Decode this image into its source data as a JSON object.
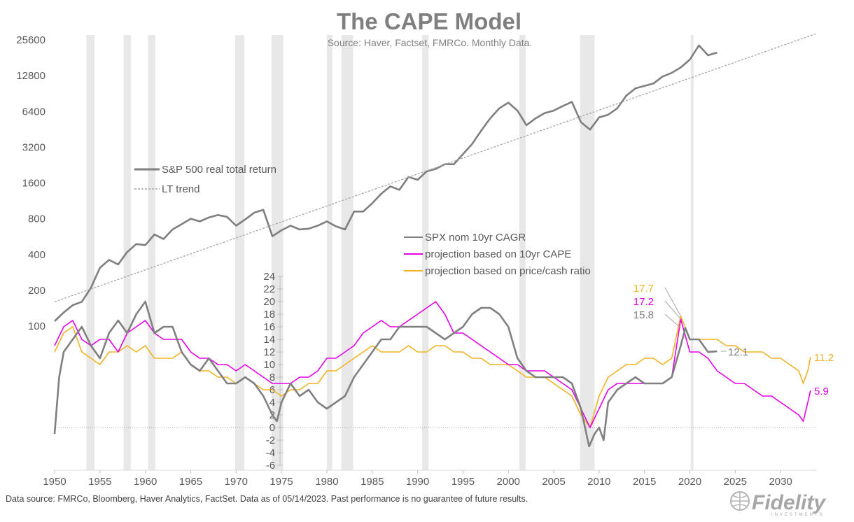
{
  "header": {
    "title": "The CAPE Model",
    "subtitle": "Source: Haver, Factset, FMRCo.  Monthly Data."
  },
  "footer": {
    "note": "Data source: FMRCo, Bloomberg, Haver Analytics, FactSet. Data as of 05/14/2023. Past performance is no guarantee of future results.",
    "logo": "Fidelity",
    "logo_sub": "INVESTMENTS"
  },
  "colors": {
    "sp500": "#7f7f7f",
    "trend": "#a6a6a6",
    "cagr": "#808080",
    "cape": "#e600e6",
    "pricecash": "#f0b323",
    "recession": "#e8e8e8"
  },
  "chart_data": [
    {
      "type": "line",
      "title": "The CAPE Model",
      "scale": "log2",
      "ylim": [
        50,
        30000
      ],
      "y_ticks": [
        "100",
        "200",
        "400",
        "800",
        "1600",
        "3200",
        "6400",
        "12800",
        "25600"
      ],
      "y_tick_values": [
        100,
        200,
        400,
        800,
        1600,
        3200,
        6400,
        12800,
        25600
      ],
      "xlim": [
        1950,
        2034
      ],
      "x_ticks": [
        "1950",
        "1955",
        "1960",
        "1965",
        "1970",
        "1975",
        "1980",
        "1985",
        "1990",
        "1995",
        "2000",
        "2005",
        "2010",
        "2015",
        "2020",
        "2025",
        "2030"
      ],
      "recessions": [
        [
          1953.5,
          1954.4
        ],
        [
          1957.6,
          1958.4
        ],
        [
          1960.3,
          1961.1
        ],
        [
          1969.9,
          1970.9
        ],
        [
          1973.9,
          1975.2
        ],
        [
          1980.0,
          1980.6
        ],
        [
          1981.6,
          1982.9
        ],
        [
          1990.5,
          1991.2
        ],
        [
          2001.2,
          2001.9
        ],
        [
          2007.9,
          2009.5
        ],
        [
          2020.1,
          2020.4
        ]
      ],
      "series": [
        {
          "name": "S&P 500 real total return",
          "style": "solid",
          "x": [
            1950,
            1951,
            1952,
            1953,
            1954,
            1955,
            1956,
            1957,
            1958,
            1959,
            1960,
            1961,
            1962,
            1963,
            1964,
            1965,
            1966,
            1967,
            1968,
            1969,
            1970,
            1971,
            1972,
            1973,
            1974,
            1975,
            1976,
            1977,
            1978,
            1979,
            1980,
            1981,
            1982,
            1983,
            1984,
            1985,
            1986,
            1987,
            1988,
            1989,
            1990,
            1991,
            1992,
            1993,
            1994,
            1995,
            1996,
            1997,
            1998,
            1999,
            2000,
            2001,
            2002,
            2003,
            2004,
            2005,
            2006,
            2007,
            2008,
            2009,
            2010,
            2011,
            2012,
            2013,
            2014,
            2015,
            2016,
            2017,
            2018,
            2019,
            2020,
            2021,
            2022,
            2023
          ],
          "values": [
            110,
            130,
            150,
            160,
            210,
            310,
            360,
            330,
            420,
            490,
            480,
            590,
            540,
            650,
            720,
            800,
            760,
            820,
            860,
            830,
            700,
            790,
            900,
            950,
            570,
            640,
            700,
            650,
            660,
            700,
            760,
            690,
            650,
            920,
            920,
            1080,
            1300,
            1500,
            1400,
            1800,
            1700,
            2000,
            2100,
            2300,
            2300,
            2800,
            3400,
            4400,
            5600,
            6800,
            7600,
            6500,
            4900,
            5600,
            6200,
            6500,
            7100,
            7700,
            5200,
            4500,
            5700,
            6000,
            6800,
            8700,
            10000,
            10500,
            11000,
            12600,
            13500,
            15000,
            17500,
            23000,
            19000,
            20000
          ]
        },
        {
          "name": "LT trend",
          "style": "dashed",
          "x": [
            1950,
            2034
          ],
          "values": [
            160,
            29000
          ]
        }
      ]
    },
    {
      "type": "line",
      "ylim": [
        -6,
        24
      ],
      "y_ticks": [
        "-6",
        "-4",
        "-2",
        "0",
        "2",
        "4",
        "6",
        "8",
        "10",
        "12",
        "14",
        "16",
        "18",
        "20",
        "22",
        "24"
      ],
      "y_tick_values": [
        -6,
        -4,
        -2,
        0,
        2,
        4,
        6,
        8,
        10,
        12,
        14,
        16,
        18,
        20,
        22,
        24
      ],
      "xlim": [
        1950,
        2034
      ],
      "annotations": [
        {
          "text": "17.7",
          "series": "projection based on price/cash ratio",
          "x": 2019,
          "y": 17.7
        },
        {
          "text": "17.2",
          "series": "projection based on 10yr CAPE",
          "x": 2019,
          "y": 17.2
        },
        {
          "text": "15.8",
          "series": "SPX nom 10yr CAGR",
          "x": 2019,
          "y": 15.8
        },
        {
          "text": "12.1",
          "series": "SPX nom 10yr CAGR",
          "x": 2023,
          "y": 12.1
        },
        {
          "text": "11.2",
          "series": "projection based on price/cash ratio",
          "x": 2033.3,
          "y": 11.2
        },
        {
          "text": "5.9",
          "series": "projection based on 10yr CAPE",
          "x": 2033.3,
          "y": 5.9
        }
      ],
      "series": [
        {
          "name": "SPX nom 10yr CAGR",
          "x": [
            1950,
            1950.5,
            1951,
            1952,
            1953,
            1954,
            1955,
            1956,
            1957,
            1958,
            1959,
            1960,
            1961,
            1962,
            1963,
            1964,
            1965,
            1966,
            1967,
            1968,
            1969,
            1970,
            1971,
            1972,
            1973,
            1974,
            1974.5,
            1975,
            1976,
            1977,
            1978,
            1979,
            1980,
            1981,
            1982,
            1983,
            1984,
            1985,
            1986,
            1987,
            1988,
            1989,
            1990,
            1991,
            1992,
            1993,
            1994,
            1995,
            1996,
            1997,
            1998,
            1999,
            2000,
            2001,
            2002,
            2003,
            2004,
            2005,
            2006,
            2007,
            2008,
            2008.9,
            2009.5,
            2010,
            2010.5,
            2011,
            2012,
            2013,
            2014,
            2015,
            2016,
            2017,
            2018,
            2019,
            2019.5,
            2020,
            2021,
            2022,
            2023
          ],
          "values": [
            -1,
            8,
            12,
            14,
            16,
            13,
            11,
            15,
            17,
            15,
            18,
            20,
            15,
            16,
            16,
            12,
            10,
            9,
            11,
            9,
            7,
            7,
            8,
            7,
            5,
            2,
            1,
            4,
            7,
            5,
            6,
            4,
            3,
            4,
            5,
            8,
            10,
            12,
            14,
            14,
            16,
            16,
            16,
            16,
            15,
            14,
            15,
            16,
            18,
            19,
            19,
            18,
            16,
            11,
            9,
            8,
            8,
            8,
            8,
            7,
            3,
            -3,
            -1,
            0,
            -2,
            4,
            6,
            7,
            8,
            7,
            7,
            7,
            8,
            13,
            15.8,
            14,
            14,
            12,
            12.1
          ]
        },
        {
          "name": "projection based on 10yr CAPE",
          "x": [
            1950,
            1951,
            1952,
            1953,
            1954,
            1955,
            1956,
            1957,
            1958,
            1959,
            1960,
            1961,
            1962,
            1963,
            1964,
            1965,
            1966,
            1967,
            1968,
            1969,
            1970,
            1971,
            1972,
            1973,
            1974,
            1975,
            1976,
            1977,
            1978,
            1979,
            1980,
            1981,
            1982,
            1983,
            1984,
            1985,
            1986,
            1987,
            1988,
            1989,
            1990,
            1991,
            1992,
            1993,
            1994,
            1995,
            1996,
            1997,
            1998,
            1999,
            2000,
            2001,
            2002,
            2003,
            2004,
            2005,
            2006,
            2007,
            2008,
            2009,
            2010,
            2011,
            2012,
            2013,
            2014,
            2015,
            2016,
            2017,
            2018,
            2019,
            2020,
            2021,
            2022,
            2023,
            2024,
            2025,
            2026,
            2027,
            2028,
            2029,
            2030,
            2031,
            2032,
            2032.5,
            2033,
            2033.3
          ],
          "values": [
            13,
            16,
            17,
            14,
            13,
            14,
            14,
            12,
            15,
            16,
            17,
            15,
            14,
            14,
            14,
            12,
            11,
            11,
            10,
            10,
            9,
            10,
            9,
            8,
            7,
            7,
            7,
            8,
            8,
            9,
            11,
            11,
            12,
            13,
            15,
            16,
            17,
            16,
            16,
            17,
            18,
            19,
            20,
            18,
            15,
            15,
            14,
            13,
            12,
            11,
            10,
            10,
            9,
            9,
            9,
            8,
            7,
            6,
            3,
            0,
            3,
            6,
            7,
            7,
            7,
            7,
            7,
            7,
            8,
            17.2,
            12,
            12,
            11,
            9,
            8,
            7,
            7,
            6,
            5,
            5,
            4,
            3,
            2,
            1,
            4,
            5.9
          ]
        },
        {
          "name": "projection based on price/cash ratio",
          "x": [
            1950,
            1951,
            1952,
            1953,
            1954,
            1955,
            1956,
            1957,
            1958,
            1959,
            1960,
            1961,
            1962,
            1963,
            1964,
            1965,
            1966,
            1967,
            1968,
            1969,
            1970,
            1971,
            1972,
            1973,
            1974,
            1975,
            1976,
            1977,
            1978,
            1979,
            1980,
            1981,
            1982,
            1983,
            1984,
            1985,
            1986,
            1987,
            1988,
            1989,
            1990,
            1991,
            1992,
            1993,
            1994,
            1995,
            1996,
            1997,
            1998,
            1999,
            2000,
            2001,
            2002,
            2003,
            2004,
            2005,
            2006,
            2007,
            2008,
            2009,
            2010,
            2011,
            2012,
            2013,
            2014,
            2015,
            2016,
            2017,
            2018,
            2019,
            2020,
            2021,
            2022,
            2023,
            2024,
            2025,
            2026,
            2027,
            2028,
            2029,
            2030,
            2031,
            2032,
            2032.5,
            2033,
            2033.3
          ],
          "values": [
            12,
            15,
            16,
            12,
            11,
            10,
            12,
            12,
            13,
            12,
            13,
            11,
            11,
            11,
            12,
            10,
            9,
            9,
            8,
            8,
            7,
            8,
            7,
            6,
            6,
            5,
            6,
            6,
            7,
            7,
            9,
            9,
            10,
            11,
            12,
            13,
            12,
            12,
            12,
            13,
            12,
            12,
            13,
            13,
            12,
            12,
            11,
            11,
            10,
            10,
            10,
            9,
            8,
            8,
            8,
            7,
            6,
            5,
            2,
            0,
            5,
            8,
            9,
            10,
            10,
            11,
            11,
            10,
            11,
            17.7,
            14,
            14,
            14,
            14,
            13,
            13,
            12,
            12,
            12,
            11,
            11,
            10,
            9,
            7,
            9,
            11.2
          ]
        }
      ]
    }
  ]
}
